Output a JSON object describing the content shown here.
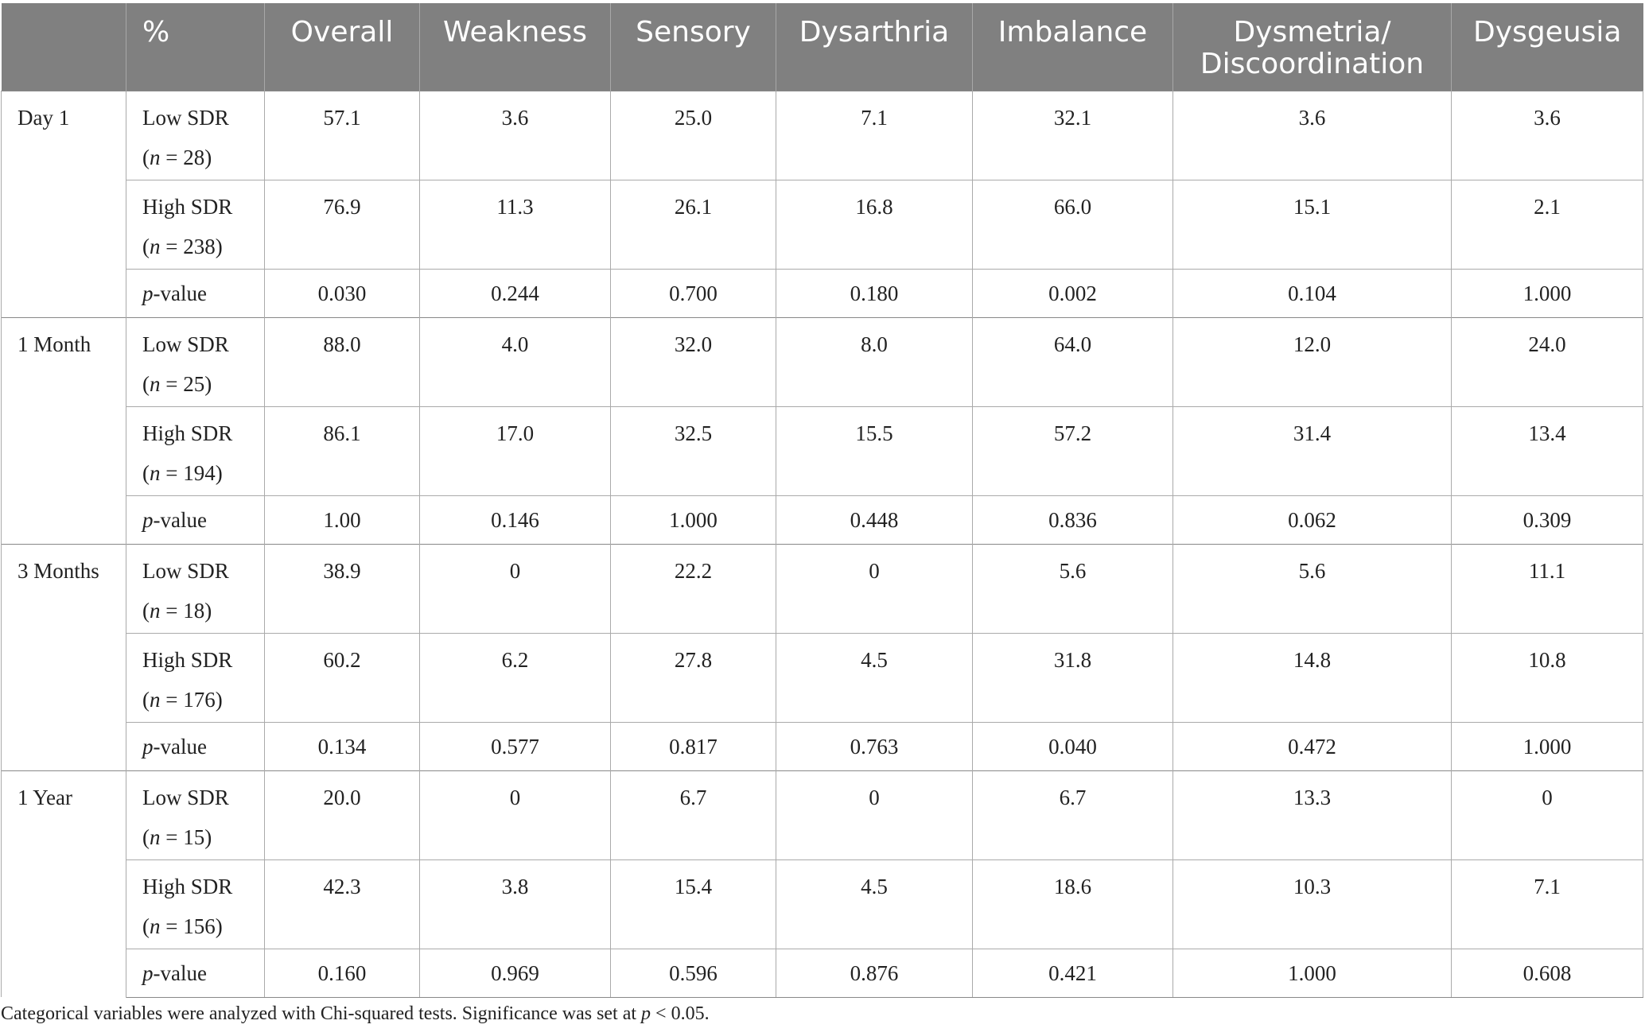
{
  "table": {
    "headers": [
      "%",
      "Overall",
      "Weakness",
      "Sensory",
      "Dysarthria",
      "Imbalance",
      "Dysmetria/ Discoordination",
      "Dysgeusia"
    ],
    "col_widths_note": "",
    "groups": [
      {
        "time": "Day 1",
        "rows": [
          {
            "label": "Low SDR",
            "n_prefix": "n",
            "n_value": " = 28)",
            "values": [
              "57.1",
              "3.6",
              "25.0",
              "7.1",
              "32.1",
              "3.6",
              "3.6"
            ]
          },
          {
            "label": "High SDR",
            "n_prefix": "n",
            "n_value": " = 238)",
            "values": [
              "76.9",
              "11.3",
              "26.1",
              "16.8",
              "66.0",
              "15.1",
              "2.1"
            ]
          }
        ],
        "pvalues": [
          "0.030",
          "0.244",
          "0.700",
          "0.180",
          "0.002",
          "0.104",
          "1.000"
        ]
      },
      {
        "time": "1 Month",
        "rows": [
          {
            "label": "Low SDR",
            "n_prefix": "n",
            "n_value": " = 25)",
            "values": [
              "88.0",
              "4.0",
              "32.0",
              "8.0",
              "64.0",
              "12.0",
              "24.0"
            ]
          },
          {
            "label": "High SDR",
            "n_prefix": "n",
            "n_value": " = 194)",
            "values": [
              "86.1",
              "17.0",
              "32.5",
              "15.5",
              "57.2",
              "31.4",
              "13.4"
            ]
          }
        ],
        "pvalues": [
          "1.00",
          "0.146",
          "1.000",
          "0.448",
          "0.836",
          "0.062",
          "0.309"
        ]
      },
      {
        "time": "3 Months",
        "rows": [
          {
            "label": "Low SDR",
            "n_prefix": "n",
            "n_value": " = 18)",
            "values": [
              "38.9",
              "0",
              "22.2",
              "0",
              "5.6",
              "5.6",
              "11.1"
            ]
          },
          {
            "label": "High SDR",
            "n_prefix": "n",
            "n_value": " = 176)",
            "values": [
              "60.2",
              "6.2",
              "27.8",
              "4.5",
              "31.8",
              "14.8",
              "10.8"
            ]
          }
        ],
        "pvalues": [
          "0.134",
          "0.577",
          "0.817",
          "0.763",
          "0.040",
          "0.472",
          "1.000"
        ]
      },
      {
        "time": "1 Year",
        "rows": [
          {
            "label": "Low SDR",
            "n_prefix": "n",
            "n_value": " = 15)",
            "values": [
              "20.0",
              "0",
              "6.7",
              "0",
              "6.7",
              "13.3",
              "0"
            ]
          },
          {
            "label": "High SDR",
            "n_prefix": "n",
            "n_value": " = 156)",
            "values": [
              "42.3",
              "3.8",
              "15.4",
              "4.5",
              "18.6",
              "10.3",
              "7.1"
            ]
          }
        ],
        "pvalues": [
          "0.160",
          "0.969",
          "0.596",
          "0.876",
          "0.421",
          "1.000",
          "0.608"
        ]
      }
    ],
    "pvalue_label_italic": "p",
    "pvalue_label_rest": "-value"
  },
  "footnote": {
    "text": "Categorical variables were analyzed with Chi-squared tests. Significance was set at ",
    "italic": "p",
    "tail": " < 0.05."
  }
}
